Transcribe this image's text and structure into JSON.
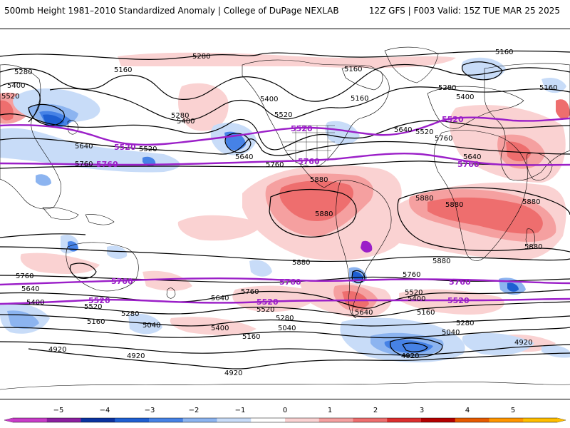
{
  "header": {
    "title": "500mb Height 1981–2010 Standardized Anomaly | College of DuPage NEXLAB",
    "run_info": "12Z GFS | F003 Valid: 15Z TUE MAR 25 2025"
  },
  "map": {
    "contour_labels": {
      "h5280a": "5280",
      "h5160a": "5160",
      "h5280b": "5280",
      "h5400a": "5400",
      "h5520a": "5520",
      "h5400b": "5400",
      "h5280c": "5280",
      "h5400c": "5400",
      "h5520b": "5520",
      "h5640a": "5640",
      "h5520c": "5520",
      "h5760a": "5760",
      "h5640b": "5640",
      "h5760b": "5760",
      "h5880a": "5880",
      "h5160b": "5160",
      "h5160c": "5160",
      "h5160d": "5160",
      "h5280d": "5280",
      "h5400d": "5400",
      "h5520d": "5520",
      "h5640c": "5640",
      "h5760c": "5760",
      "h5640d": "5640",
      "h5880b": "5880",
      "h5880c": "5880",
      "h5880d": "5880",
      "h5880e": "5880",
      "h5880f": "5880",
      "h5880g": "5880",
      "h5520e": "5520",
      "h5760d": "5760",
      "h5520f": "5520",
      "s5760a": "5760",
      "s5640a": "5640",
      "s5400a": "5400",
      "s5520a": "5520",
      "s5520b": "5520",
      "s5280a": "5280",
      "s5160a": "5160",
      "s5040a": "5040",
      "s5640b": "5640",
      "s5760b": "5760",
      "s5400b": "5400",
      "s5160b": "5160",
      "s5040b": "5040",
      "s5520c": "5520",
      "s5280b": "5280",
      "s5760c": "5760",
      "s5760d": "5760",
      "s5520d": "5520",
      "s5400c": "5400",
      "s5640c": "5640",
      "s5160c": "5160",
      "s5280c": "5280",
      "s5040c": "5040",
      "s5760e": "5760",
      "s5520e": "5520",
      "s4920a": "4920",
      "s4920b": "4920",
      "s4920c": "4920",
      "s4920d": "4920",
      "s4920e": "4920",
      "s5760f": "5760"
    }
  },
  "colorbar": {
    "labels": [
      "−5",
      "−4",
      "−3",
      "−2",
      "−1",
      "0",
      "1",
      "2",
      "3",
      "4",
      "5"
    ],
    "colors": [
      "#c83cc8",
      "#8c1fa0",
      "#0a32a0",
      "#1e5fd2",
      "#4682e6",
      "#8cb4f0",
      "#c8dcf8",
      "#ffffff",
      "#fad2d2",
      "#f5a0a0",
      "#ee6e6e",
      "#dc2d2d",
      "#b40000",
      "#e65a00",
      "#ff9600",
      "#ffbe00"
    ]
  }
}
